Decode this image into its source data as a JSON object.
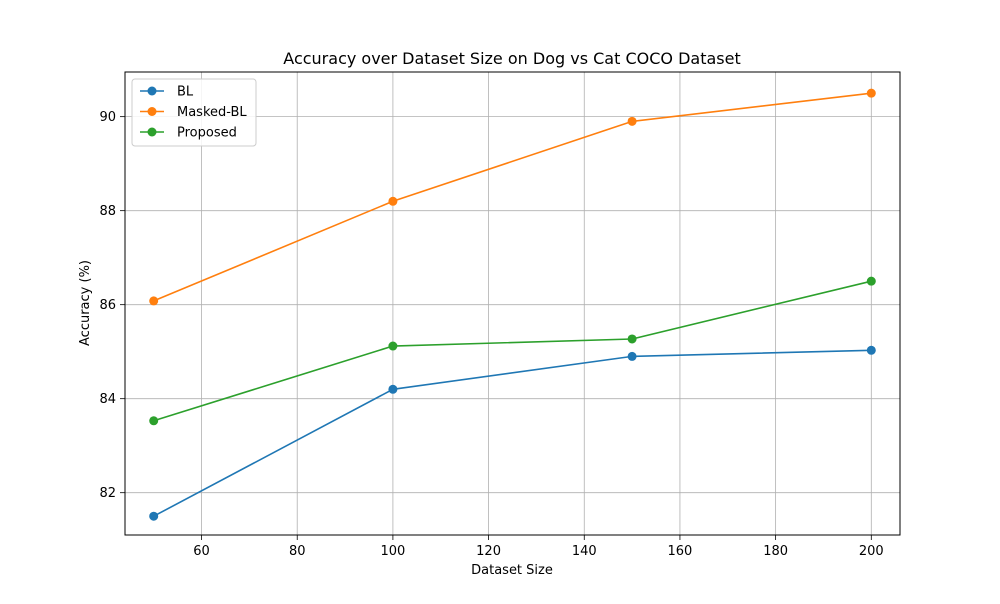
{
  "chart_data": {
    "type": "line",
    "title": "Accuracy over Dataset Size on Dog vs Cat COCO Dataset",
    "xlabel": "Dataset Size",
    "ylabel": "Accuracy (%)",
    "x": [
      50,
      100,
      150,
      200
    ],
    "xlim": [
      44,
      206
    ],
    "ylim": [
      81.1,
      90.95
    ],
    "xticks": [
      60,
      80,
      100,
      120,
      140,
      160,
      180,
      200
    ],
    "yticks": [
      82,
      84,
      86,
      88,
      90
    ],
    "grid": true,
    "legend_position": "upper-left",
    "series": [
      {
        "name": "BL",
        "color": "#1f77b4",
        "marker": "circle",
        "values": [
          81.5,
          84.2,
          84.9,
          85.03
        ]
      },
      {
        "name": "Masked-BL",
        "color": "#ff7f0e",
        "marker": "circle",
        "values": [
          86.08,
          88.2,
          89.9,
          90.5
        ]
      },
      {
        "name": "Proposed",
        "color": "#2ca02c",
        "marker": "circle",
        "values": [
          83.53,
          85.12,
          85.27,
          86.5
        ]
      }
    ]
  }
}
